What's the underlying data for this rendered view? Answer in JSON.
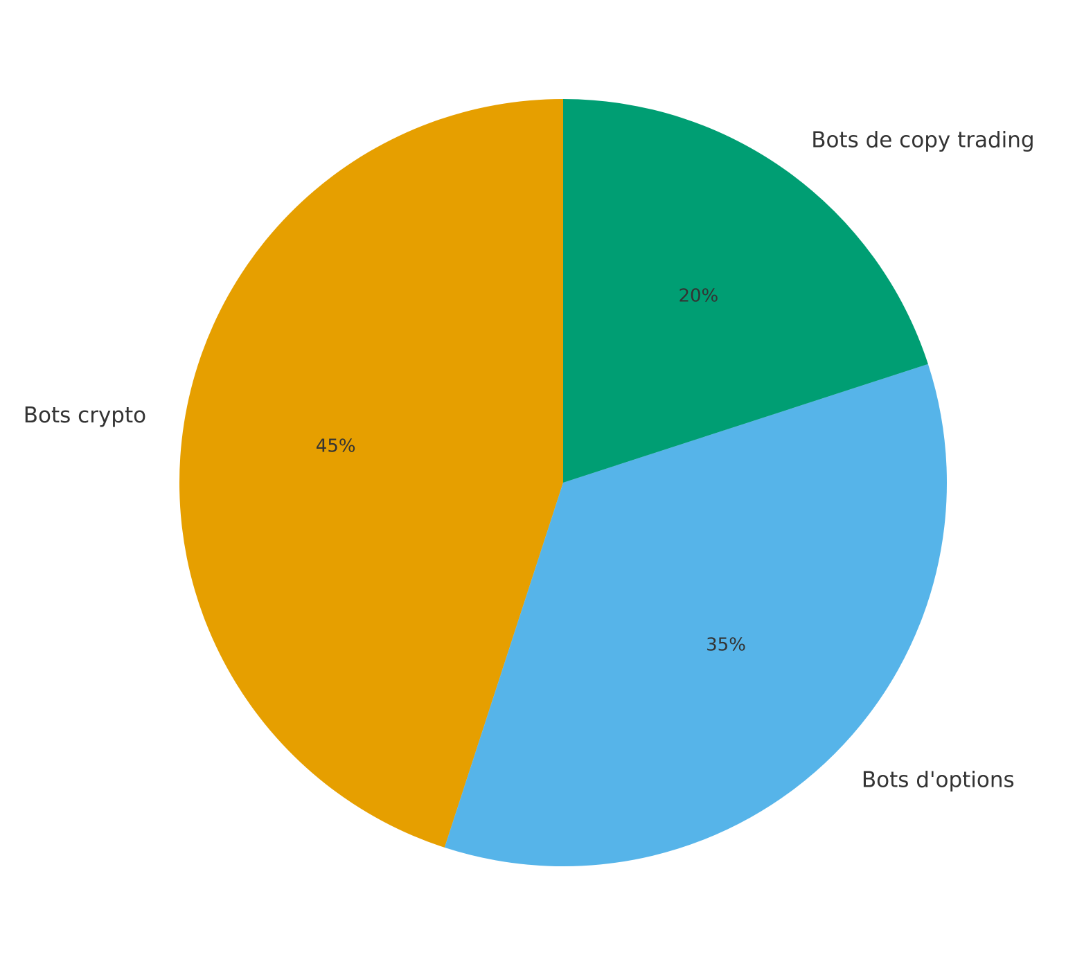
{
  "chart_data": {
    "type": "pie",
    "categories": [
      "Bots crypto",
      "Bots d'options",
      "Bots de copy trading"
    ],
    "values": [
      45,
      35,
      20
    ],
    "value_labels": [
      "45%",
      "35%",
      "20%"
    ],
    "colors": [
      "#e69f00",
      "#56b4e9",
      "#009e73"
    ]
  }
}
